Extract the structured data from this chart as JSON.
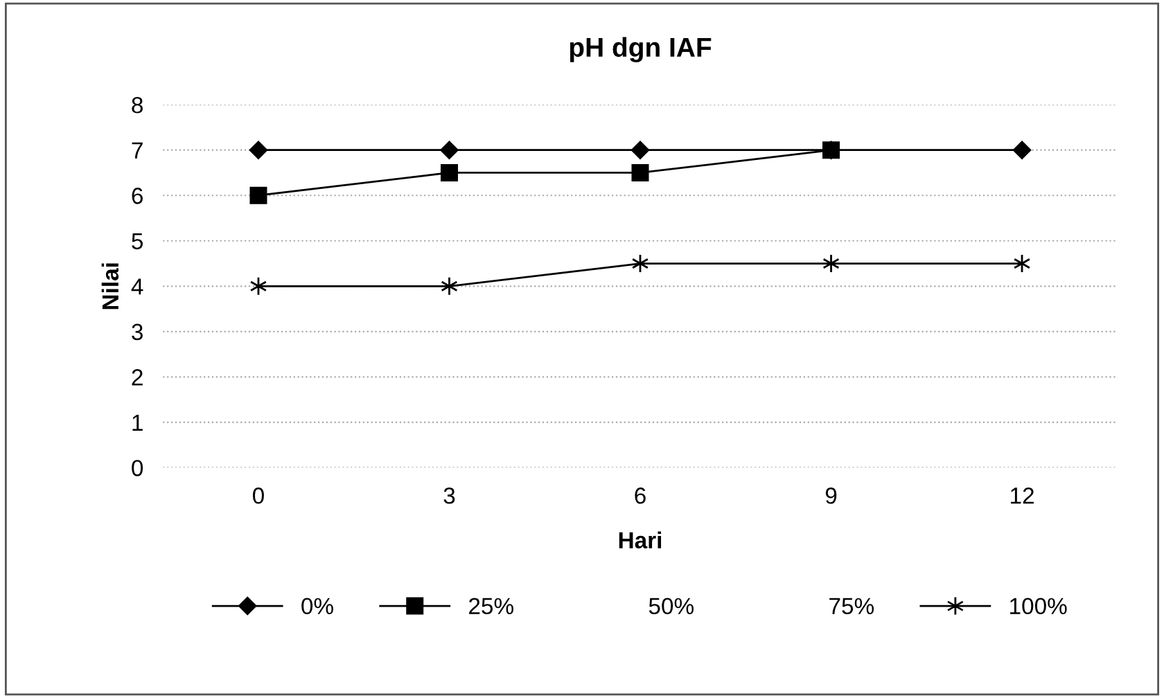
{
  "chart_data": {
    "type": "line",
    "title": "pH dgn IAF",
    "xlabel": "Hari",
    "ylabel": "Nilai",
    "categories": [
      "0",
      "3",
      "6",
      "9",
      "12"
    ],
    "series": [
      {
        "name": "0%",
        "color": "#000000",
        "marker": "diamond",
        "values": [
          7,
          7,
          7,
          7,
          7
        ]
      },
      {
        "name": "25%",
        "color": "#000000",
        "marker": "square",
        "values": [
          6,
          6.5,
          6.5,
          7,
          null
        ]
      },
      {
        "name": "50%",
        "marker": "none",
        "values": [
          null,
          null,
          null,
          null,
          null
        ]
      },
      {
        "name": "75%",
        "marker": "none",
        "values": [
          null,
          null,
          null,
          null,
          null
        ]
      },
      {
        "name": "100%",
        "color": "#000000",
        "marker": "cross",
        "values": [
          4,
          4,
          4.5,
          4.5,
          4.5
        ]
      }
    ],
    "ylim": [
      0,
      8
    ],
    "yticks": [
      0,
      1,
      2,
      3,
      4,
      5,
      6,
      7,
      8
    ],
    "grid": "y",
    "legend": "bottom"
  }
}
